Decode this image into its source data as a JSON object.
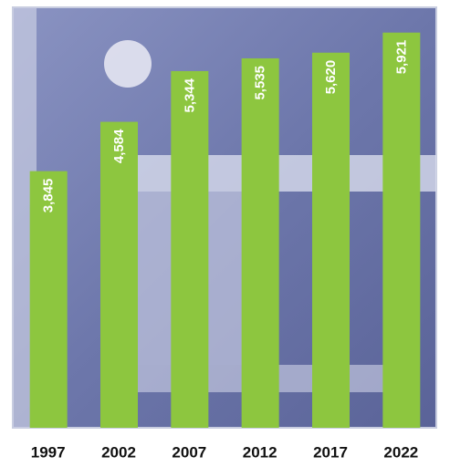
{
  "chart_data": {
    "type": "bar",
    "categories": [
      "1997",
      "2002",
      "2007",
      "2012",
      "2017",
      "2022"
    ],
    "values": [
      3845,
      4584,
      5344,
      5535,
      5620,
      5921
    ],
    "value_labels": [
      "3,845",
      "4,584",
      "5,344",
      "5,535",
      "5,620",
      "5,921"
    ],
    "color": "#8dc63f",
    "ylim": [
      0,
      6300
    ]
  }
}
